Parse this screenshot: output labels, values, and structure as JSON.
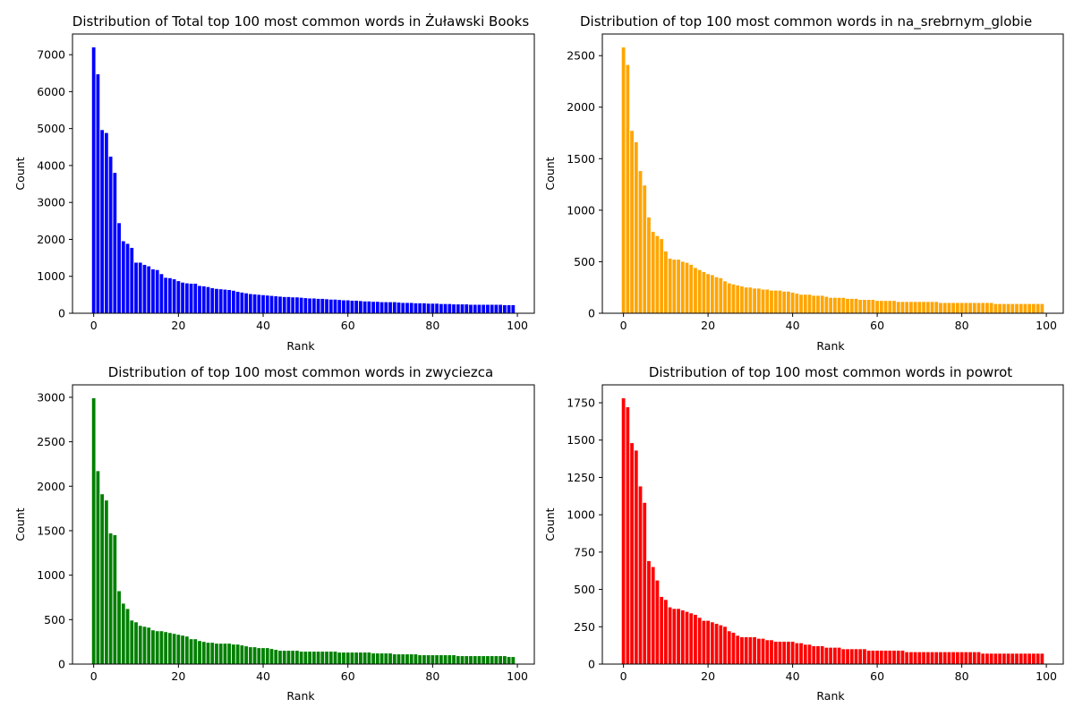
{
  "chart_data": [
    {
      "type": "bar",
      "title": "Distribution of Total top 100 most common words in Żuławski Books",
      "xlabel": "Rank",
      "ylabel": "Count",
      "color": "#0000ff",
      "xlim": [
        -5,
        104
      ],
      "ylim": [
        0,
        7560
      ],
      "xticks": [
        0,
        20,
        40,
        60,
        80,
        100
      ],
      "yticks": [
        0,
        1000,
        2000,
        3000,
        4000,
        5000,
        6000,
        7000
      ],
      "grid": false,
      "values": [
        7200,
        6470,
        4960,
        4880,
        4240,
        3800,
        2440,
        1950,
        1880,
        1770,
        1370,
        1370,
        1310,
        1270,
        1190,
        1170,
        1060,
        960,
        950,
        920,
        870,
        830,
        810,
        800,
        800,
        740,
        730,
        710,
        680,
        660,
        650,
        640,
        630,
        610,
        580,
        560,
        540,
        520,
        510,
        500,
        490,
        480,
        470,
        460,
        450,
        440,
        440,
        430,
        430,
        420,
        410,
        400,
        400,
        390,
        390,
        380,
        370,
        370,
        360,
        350,
        350,
        340,
        340,
        330,
        320,
        320,
        310,
        310,
        300,
        300,
        300,
        300,
        290,
        280,
        280,
        280,
        270,
        270,
        270,
        260,
        260,
        260,
        250,
        250,
        250,
        240,
        240,
        240,
        240,
        230,
        230,
        230,
        230,
        230,
        230,
        230,
        230,
        220,
        220,
        220
      ]
    },
    {
      "type": "bar",
      "title": "Distribution of top 100 most common words in na_srebrnym_globie",
      "xlabel": "Rank",
      "ylabel": "Count",
      "color": "#ffa500",
      "xlim": [
        -5,
        104
      ],
      "ylim": [
        0,
        2710
      ],
      "xticks": [
        0,
        20,
        40,
        60,
        80,
        100
      ],
      "yticks": [
        0,
        500,
        1000,
        1500,
        2000,
        2500
      ],
      "grid": false,
      "values": [
        2580,
        2410,
        1770,
        1660,
        1380,
        1240,
        930,
        790,
        750,
        720,
        600,
        530,
        520,
        520,
        500,
        490,
        470,
        440,
        420,
        400,
        380,
        370,
        350,
        340,
        310,
        290,
        280,
        270,
        260,
        250,
        250,
        240,
        240,
        230,
        230,
        220,
        220,
        220,
        210,
        210,
        200,
        190,
        180,
        180,
        180,
        170,
        170,
        170,
        160,
        150,
        150,
        150,
        150,
        140,
        140,
        140,
        130,
        130,
        130,
        130,
        120,
        120,
        120,
        120,
        120,
        110,
        110,
        110,
        110,
        110,
        110,
        110,
        110,
        110,
        110,
        100,
        100,
        100,
        100,
        100,
        100,
        100,
        100,
        100,
        100,
        100,
        100,
        100,
        90,
        90,
        90,
        90,
        90,
        90,
        90,
        90,
        90,
        90,
        90,
        90
      ]
    },
    {
      "type": "bar",
      "title": "Distribution of top 100 most common words in zwyciezca",
      "xlabel": "Rank",
      "ylabel": "Count",
      "color": "#008000",
      "xlim": [
        -5,
        104
      ],
      "ylim": [
        0,
        3140
      ],
      "xticks": [
        0,
        20,
        40,
        60,
        80,
        100
      ],
      "yticks": [
        0,
        500,
        1000,
        1500,
        2000,
        2500,
        3000
      ],
      "grid": false,
      "values": [
        2990,
        2170,
        1910,
        1840,
        1470,
        1450,
        820,
        680,
        620,
        490,
        470,
        430,
        420,
        410,
        380,
        370,
        370,
        360,
        350,
        340,
        330,
        320,
        310,
        280,
        280,
        260,
        250,
        240,
        240,
        230,
        230,
        230,
        230,
        220,
        220,
        210,
        200,
        190,
        190,
        180,
        180,
        180,
        170,
        160,
        150,
        150,
        150,
        150,
        150,
        140,
        140,
        140,
        140,
        140,
        140,
        140,
        140,
        140,
        130,
        130,
        130,
        130,
        130,
        130,
        130,
        130,
        120,
        120,
        120,
        120,
        120,
        110,
        110,
        110,
        110,
        110,
        110,
        100,
        100,
        100,
        100,
        100,
        100,
        100,
        100,
        100,
        90,
        90,
        90,
        90,
        90,
        90,
        90,
        90,
        90,
        90,
        90,
        90,
        80,
        80
      ]
    },
    {
      "type": "bar",
      "title": "Distribution of top 100 most common words in powrot",
      "xlabel": "Rank",
      "ylabel": "Count",
      "color": "#ff0000",
      "xlim": [
        -5,
        104
      ],
      "ylim": [
        0,
        1870
      ],
      "xticks": [
        0,
        20,
        40,
        60,
        80,
        100
      ],
      "yticks": [
        0,
        250,
        500,
        750,
        1000,
        1250,
        1500,
        1750
      ],
      "grid": false,
      "values": [
        1780,
        1720,
        1480,
        1430,
        1190,
        1080,
        690,
        650,
        560,
        450,
        430,
        380,
        370,
        370,
        360,
        350,
        340,
        330,
        310,
        290,
        290,
        280,
        270,
        260,
        250,
        220,
        210,
        190,
        180,
        180,
        180,
        180,
        170,
        170,
        160,
        160,
        150,
        150,
        150,
        150,
        150,
        140,
        140,
        130,
        130,
        120,
        120,
        120,
        110,
        110,
        110,
        110,
        100,
        100,
        100,
        100,
        100,
        100,
        90,
        90,
        90,
        90,
        90,
        90,
        90,
        90,
        90,
        80,
        80,
        80,
        80,
        80,
        80,
        80,
        80,
        80,
        80,
        80,
        80,
        80,
        80,
        80,
        80,
        80,
        80,
        70,
        70,
        70,
        70,
        70,
        70,
        70,
        70,
        70,
        70,
        70,
        70,
        70,
        70,
        70
      ]
    }
  ]
}
